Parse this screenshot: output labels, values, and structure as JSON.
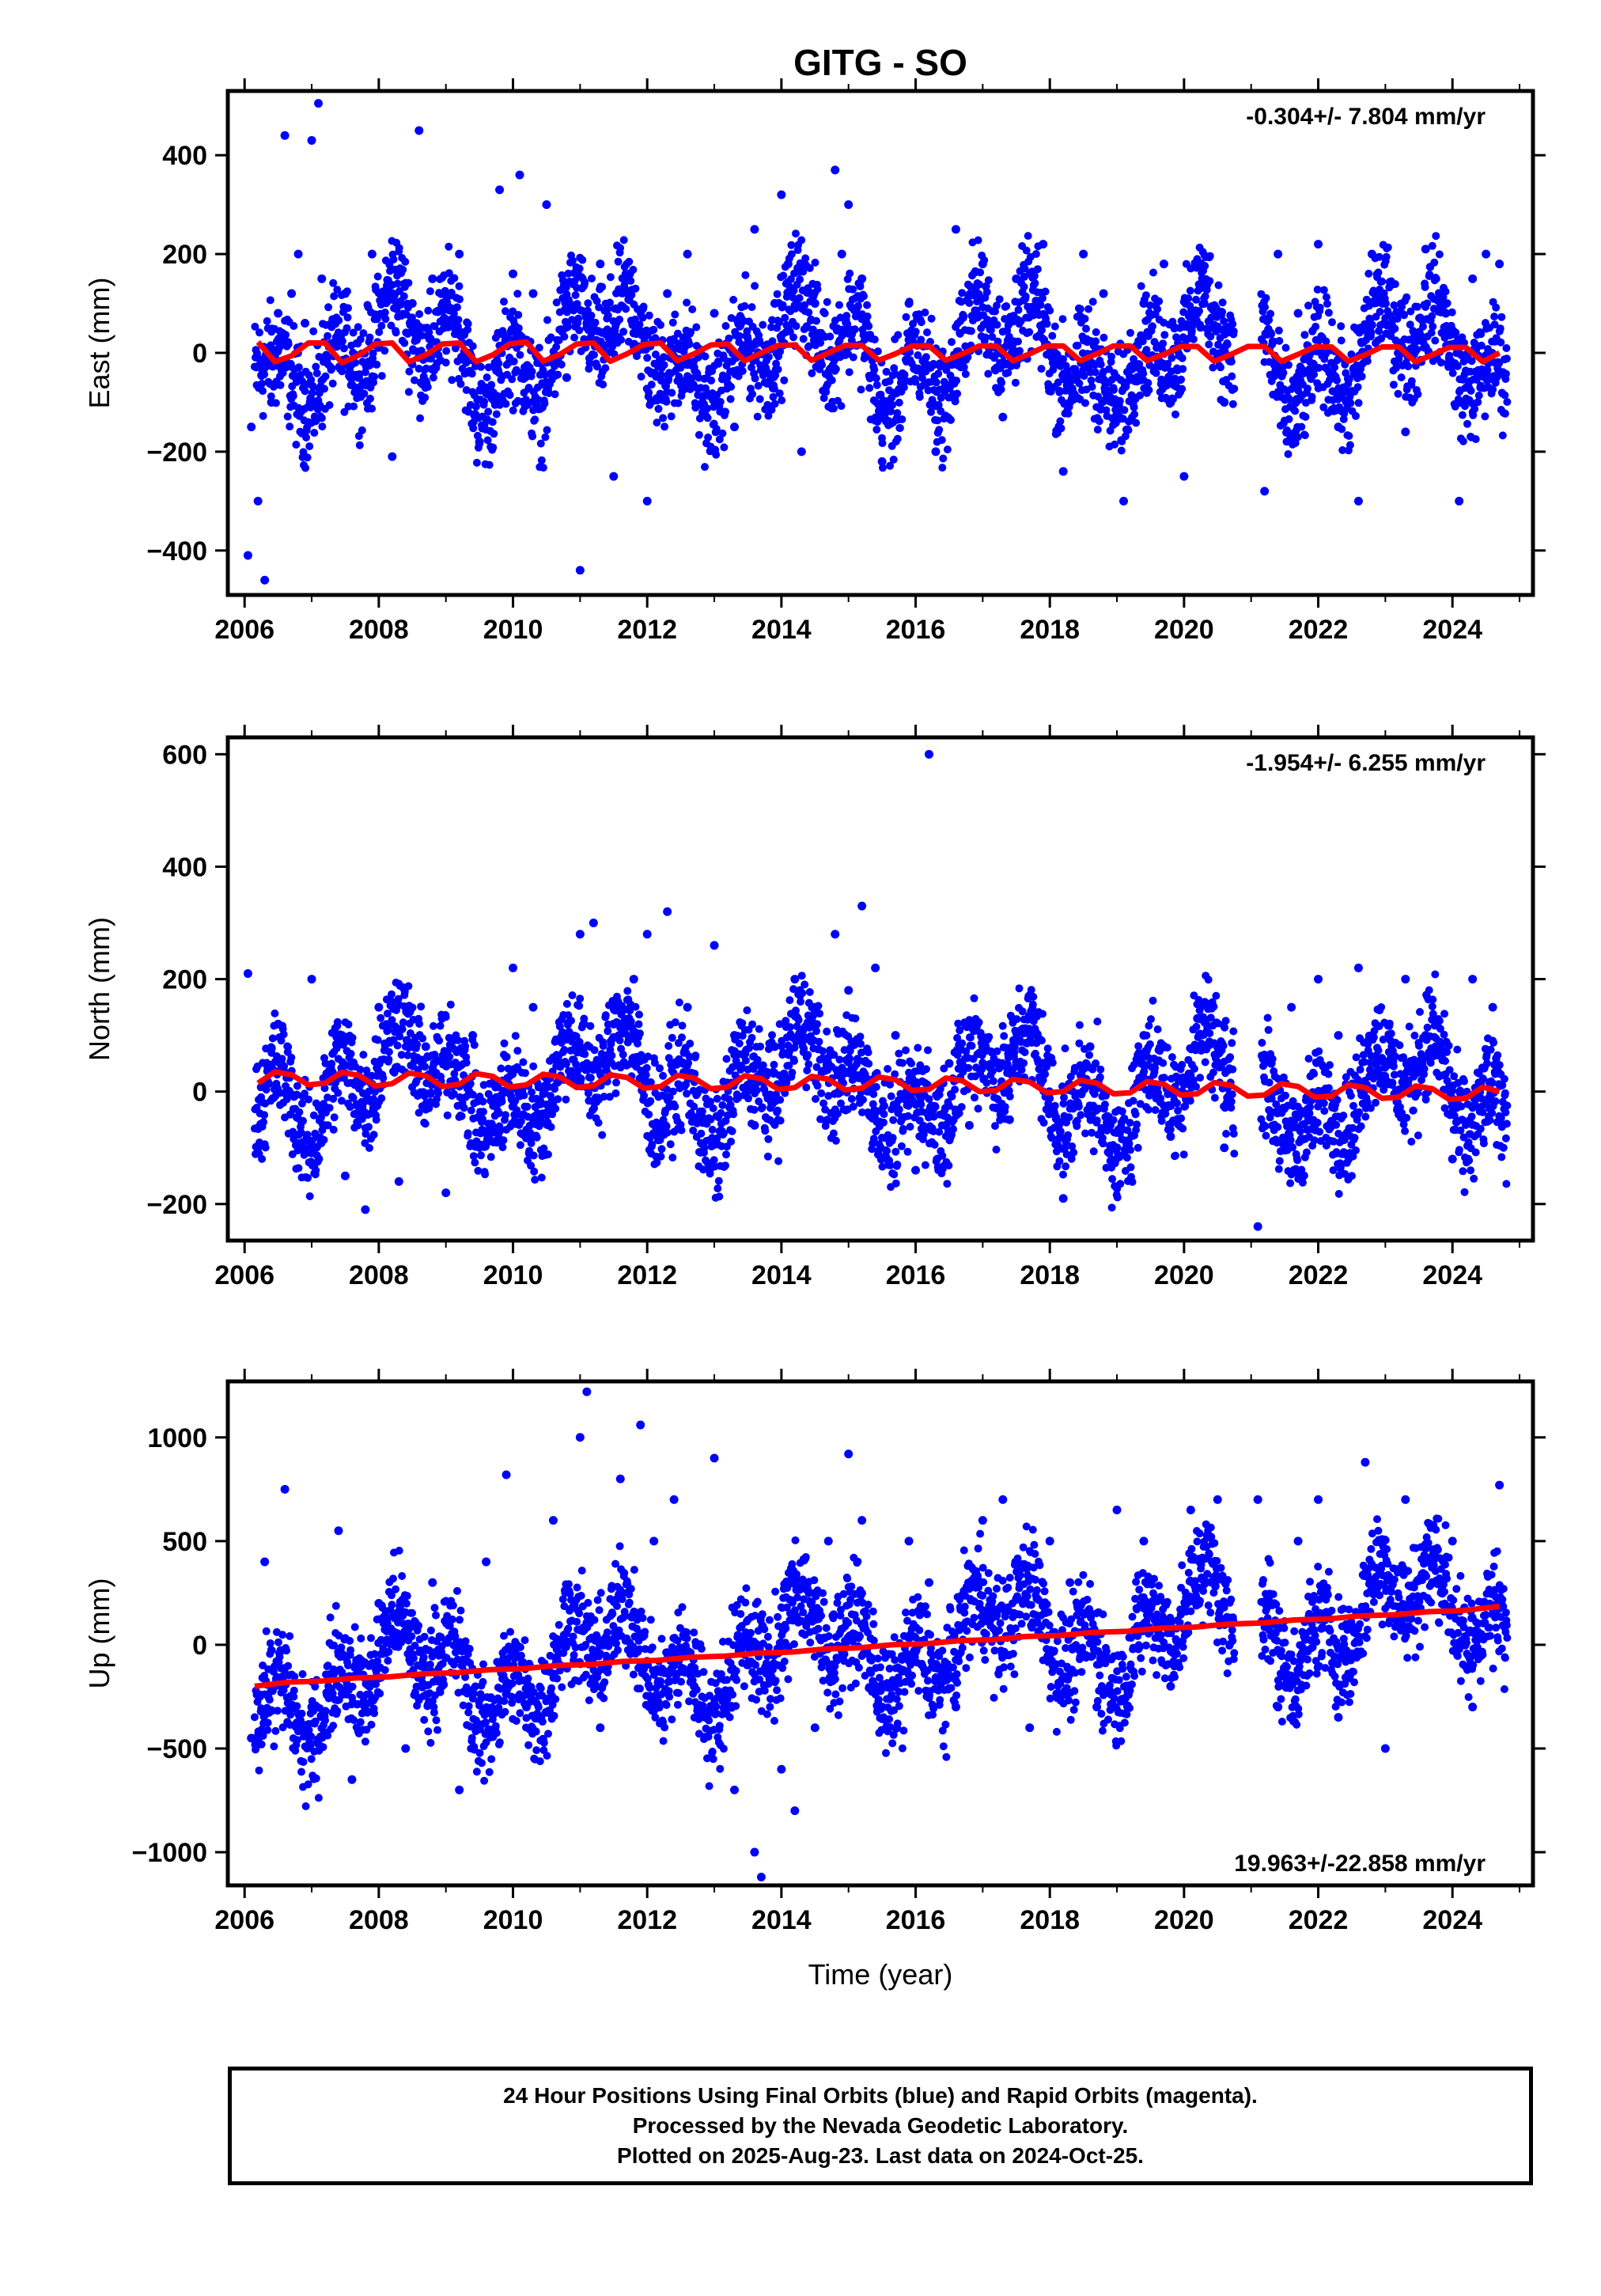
{
  "page_title": "GITG - SO",
  "colors": {
    "points": "#0000ff",
    "trend": "#ff0000",
    "axes": "#000000"
  },
  "chart_data": [
    {
      "type": "scatter",
      "title": "GITG - SO",
      "ylabel": "East (mm)",
      "xlabel": "",
      "xlim": [
        2005.75,
        2025.2
      ],
      "ylim": [
        -490,
        530
      ],
      "x_ticks": [
        "2006",
        "2008",
        "2010",
        "2012",
        "2014",
        "2016",
        "2018",
        "2020",
        "2022",
        "2024"
      ],
      "y_ticks": [
        "400",
        "200",
        "0",
        "−200",
        "−400"
      ],
      "y_tick_values": [
        400,
        200,
        0,
        -200,
        -400
      ],
      "annotation": "-0.304+/- 7.804 mm/yr",
      "annotation_position": "top-right",
      "series": [
        {
          "kind": "points",
          "color": "#0000ff",
          "x": [
            2006.05,
            2006.1,
            2006.2,
            2006.3,
            2006.4,
            2006.5,
            2006.6,
            2006.7,
            2006.8,
            2006.9,
            2007.0,
            2007.1,
            2007.15,
            2007.3,
            2007.5,
            2007.7,
            2007.9,
            2008.2,
            2008.5,
            2008.6,
            2008.8,
            2009.0,
            2009.2,
            2009.5,
            2009.8,
            2010.0,
            2010.1,
            2010.3,
            2010.5,
            2010.8,
            2011.0,
            2011.1,
            2011.3,
            2011.5,
            2011.8,
            2012.0,
            2012.3,
            2012.6,
            2013.0,
            2013.3,
            2013.6,
            2013.9,
            2014.0,
            2014.1,
            2014.3,
            2014.5,
            2014.8,
            2014.9,
            2015.0,
            2015.2,
            2015.5,
            2015.9,
            2016.3,
            2016.6,
            2017.0,
            2017.3,
            2017.5,
            2017.9,
            2018.2,
            2018.5,
            2018.8,
            2019.1,
            2019.4,
            2019.7,
            2020.0,
            2020.3,
            2020.6,
            2021.2,
            2021.4,
            2021.7,
            2022.0,
            2022.3,
            2022.6,
            2022.8,
            2023.0,
            2023.3,
            2023.6,
            2023.9,
            2024.1,
            2024.3,
            2024.5,
            2024.7
          ],
          "y": [
            -410,
            -150,
            -300,
            -460,
            -100,
            80,
            440,
            120,
            200,
            60,
            430,
            505,
            150,
            60,
            120,
            -50,
            200,
            -210,
            100,
            450,
            150,
            60,
            200,
            -180,
            330,
            160,
            360,
            120,
            300,
            -50,
            -440,
            60,
            180,
            -250,
            40,
            -300,
            120,
            200,
            80,
            -150,
            250,
            100,
            320,
            180,
            -200,
            100,
            370,
            200,
            300,
            150,
            -220,
            100,
            -200,
            250,
            180,
            -130,
            150,
            220,
            -240,
            200,
            120,
            -300,
            100,
            180,
            -250,
            100,
            -100,
            -280,
            200,
            80,
            220,
            -150,
            -300,
            200,
            100,
            -160,
            210,
            80,
            -300,
            150,
            200,
            180
          ]
        },
        {
          "kind": "trend",
          "color": "#ff0000",
          "x": [
            2006.2,
            2006.45,
            2006.7,
            2006.95,
            2007.2,
            2007.45,
            2007.7,
            2007.95,
            2008.2,
            2008.45,
            2008.7,
            2008.95,
            2009.2,
            2009.45,
            2009.7,
            2009.95,
            2010.2,
            2010.45,
            2010.7,
            2010.95,
            2011.2,
            2011.45,
            2011.7,
            2011.95,
            2012.2,
            2012.45,
            2012.7,
            2012.95,
            2013.2,
            2013.45,
            2013.7,
            2013.95,
            2014.2,
            2014.45,
            2014.7,
            2014.95,
            2015.2,
            2015.45,
            2015.7,
            2015.95,
            2016.2,
            2016.45,
            2016.7,
            2016.95,
            2017.2,
            2017.45,
            2017.7,
            2017.95,
            2018.2,
            2018.45,
            2018.7,
            2018.95,
            2019.2,
            2019.45,
            2019.7,
            2019.95,
            2020.2,
            2020.45,
            2020.7,
            2020.95,
            2021.2,
            2021.45,
            2021.7,
            2021.95,
            2022.2,
            2022.45,
            2022.7,
            2022.95,
            2023.2,
            2023.45,
            2023.7,
            2023.95,
            2024.2,
            2024.45,
            2024.7
          ],
          "y": [
            22,
            -18,
            -6,
            20,
            20,
            -20,
            -5,
            18,
            20,
            -18,
            -4,
            18,
            20,
            -18,
            -4,
            18,
            22,
            -17,
            -3,
            18,
            20,
            -17,
            -2,
            17,
            20,
            -16,
            -2,
            16,
            18,
            -16,
            0,
            15,
            16,
            -15,
            0,
            15,
            15,
            -15,
            -2,
            14,
            14,
            -15,
            -2,
            14,
            14,
            -16,
            -2,
            14,
            14,
            -16,
            -2,
            14,
            14,
            -16,
            -3,
            13,
            13,
            -17,
            -3,
            13,
            13,
            -17,
            -3,
            12,
            12,
            -17,
            -4,
            12,
            12,
            -18,
            -4,
            11,
            11,
            -18,
            0
          ]
        }
      ]
    },
    {
      "type": "scatter",
      "title": "",
      "ylabel": "North (mm)",
      "xlabel": "",
      "xlim": [
        2005.75,
        2025.2
      ],
      "ylim": [
        -265,
        630
      ],
      "x_ticks": [
        "2006",
        "2008",
        "2010",
        "2012",
        "2014",
        "2016",
        "2018",
        "2020",
        "2022",
        "2024"
      ],
      "y_ticks": [
        "600",
        "400",
        "200",
        "0",
        "−200"
      ],
      "y_tick_values": [
        600,
        400,
        200,
        0,
        -200
      ],
      "annotation": "-1.954+/- 6.255 mm/yr",
      "annotation_position": "top-right",
      "series": [
        {
          "kind": "points",
          "color": "#0000ff",
          "x": [
            2006.05,
            2006.2,
            2006.5,
            2007.0,
            2007.5,
            2007.8,
            2008.0,
            2008.3,
            2008.7,
            2009.0,
            2009.4,
            2009.8,
            2010.0,
            2010.3,
            2010.6,
            2011.0,
            2011.2,
            2011.5,
            2011.8,
            2012.0,
            2012.3,
            2012.6,
            2013.0,
            2013.3,
            2013.6,
            2013.9,
            2014.2,
            2014.5,
            2014.8,
            2015.0,
            2015.2,
            2015.4,
            2015.7,
            2016.0,
            2016.2,
            2016.5,
            2016.8,
            2017.0,
            2017.4,
            2017.8,
            2018.2,
            2018.6,
            2019.0,
            2019.4,
            2019.8,
            2020.2,
            2020.6,
            2021.1,
            2021.3,
            2021.6,
            2022.0,
            2022.3,
            2022.6,
            2023.0,
            2023.3,
            2023.6,
            2024.0,
            2024.3,
            2024.6
          ],
          "y": [
            210,
            -100,
            120,
            200,
            -150,
            -210,
            150,
            -160,
            80,
            -180,
            100,
            -70,
            220,
            150,
            60,
            280,
            300,
            120,
            200,
            280,
            320,
            150,
            260,
            100,
            -60,
            80,
            200,
            150,
            280,
            180,
            330,
            220,
            100,
            -140,
            600,
            50,
            -60,
            80,
            -50,
            100,
            -190,
            80,
            -100,
            100,
            -80,
            130,
            -100,
            -240,
            50,
            150,
            200,
            100,
            220,
            50,
            200,
            100,
            -120,
            200,
            150
          ]
        },
        {
          "kind": "trend",
          "color": "#ff0000",
          "x": [
            2006.2,
            2006.45,
            2006.7,
            2006.95,
            2007.2,
            2007.45,
            2007.7,
            2007.95,
            2008.2,
            2008.45,
            2008.7,
            2008.95,
            2009.2,
            2009.45,
            2009.7,
            2009.95,
            2010.2,
            2010.45,
            2010.7,
            2010.95,
            2011.2,
            2011.45,
            2011.7,
            2011.95,
            2012.2,
            2012.45,
            2012.7,
            2012.95,
            2013.2,
            2013.45,
            2013.7,
            2013.95,
            2014.2,
            2014.45,
            2014.7,
            2014.95,
            2015.2,
            2015.45,
            2015.7,
            2015.95,
            2016.2,
            2016.45,
            2016.7,
            2016.95,
            2017.2,
            2017.45,
            2017.7,
            2017.95,
            2018.2,
            2018.45,
            2018.7,
            2018.95,
            2019.2,
            2019.45,
            2019.7,
            2019.95,
            2020.2,
            2020.45,
            2020.7,
            2020.95,
            2021.2,
            2021.45,
            2021.7,
            2021.95,
            2022.2,
            2022.45,
            2022.7,
            2022.95,
            2023.2,
            2023.45,
            2023.7,
            2023.95,
            2024.2,
            2024.45,
            2024.7
          ],
          "y": [
            15,
            35,
            30,
            12,
            15,
            34,
            29,
            10,
            14,
            33,
            28,
            9,
            13,
            32,
            27,
            8,
            12,
            31,
            26,
            7,
            10,
            30,
            25,
            6,
            9,
            29,
            24,
            5,
            8,
            28,
            23,
            4,
            7,
            27,
            22,
            3,
            6,
            26,
            21,
            2,
            4,
            24,
            19,
            0,
            2,
            22,
            17,
            -2,
            0,
            20,
            15,
            -4,
            -2,
            18,
            13,
            -6,
            -4,
            16,
            11,
            -8,
            -6,
            14,
            9,
            -10,
            -8,
            12,
            7,
            -12,
            -10,
            10,
            5,
            -14,
            -12,
            8,
            0
          ]
        }
      ]
    },
    {
      "type": "scatter",
      "title": "",
      "ylabel": "Up (mm)",
      "xlabel": "Time (year)",
      "xlim": [
        2005.75,
        2025.2
      ],
      "ylim": [
        -1160,
        1270
      ],
      "x_ticks": [
        "2006",
        "2008",
        "2010",
        "2012",
        "2014",
        "2016",
        "2018",
        "2020",
        "2022",
        "2024"
      ],
      "y_ticks": [
        "1000",
        "500",
        "0",
        "−500",
        "−1000"
      ],
      "y_tick_values": [
        1000,
        500,
        0,
        -500,
        -1000
      ],
      "annotation": "19.963+/-22.858 mm/yr",
      "annotation_position": "bottom-right",
      "series": [
        {
          "kind": "points",
          "color": "#0000ff",
          "x": [
            2006.1,
            2006.3,
            2006.6,
            2007.0,
            2007.4,
            2007.6,
            2008.0,
            2008.4,
            2008.8,
            2009.2,
            2009.6,
            2009.9,
            2010.2,
            2010.6,
            2011.0,
            2011.1,
            2011.3,
            2011.6,
            2011.9,
            2012.1,
            2012.4,
            2012.7,
            2013.0,
            2013.3,
            2013.6,
            2013.7,
            2014.0,
            2014.2,
            2014.5,
            2014.7,
            2015.0,
            2015.2,
            2015.5,
            2015.9,
            2016.2,
            2016.6,
            2017.0,
            2017.3,
            2017.7,
            2018.0,
            2018.3,
            2018.7,
            2019.0,
            2019.4,
            2019.8,
            2020.1,
            2020.5,
            2021.1,
            2021.4,
            2021.7,
            2022.0,
            2022.3,
            2022.7,
            2023.0,
            2023.3,
            2023.7,
            2024.0,
            2024.3,
            2024.7
          ],
          "y": [
            -450,
            400,
            750,
            -300,
            550,
            -650,
            200,
            -500,
            300,
            -700,
            400,
            820,
            -300,
            600,
            1000,
            1220,
            -400,
            800,
            1060,
            500,
            700,
            -200,
            900,
            -700,
            -1000,
            -1120,
            -600,
            -800,
            -400,
            500,
            920,
            600,
            -200,
            500,
            300,
            -300,
            600,
            700,
            -400,
            500,
            300,
            -300,
            650,
            500,
            -200,
            650,
            700,
            700,
            -300,
            500,
            700,
            -350,
            880,
            -500,
            700,
            300,
            500,
            -300,
            770
          ]
        },
        {
          "kind": "trend",
          "color": "#ff0000",
          "x": [
            2006.15,
            2006.65,
            2007.15,
            2007.65,
            2008.15,
            2008.65,
            2009.15,
            2009.65,
            2010.15,
            2010.65,
            2011.15,
            2011.65,
            2012.15,
            2012.65,
            2013.15,
            2013.65,
            2014.15,
            2014.65,
            2015.15,
            2015.65,
            2016.15,
            2016.65,
            2017.15,
            2017.65,
            2018.15,
            2018.65,
            2019.15,
            2019.65,
            2020.15,
            2020.65,
            2021.15,
            2021.65,
            2022.15,
            2022.65,
            2023.15,
            2023.65,
            2024.15,
            2024.7
          ],
          "y": [
            -200,
            -180,
            -175,
            -160,
            -155,
            -140,
            -135,
            -120,
            -115,
            -100,
            -95,
            -80,
            -75,
            -60,
            -55,
            -40,
            -35,
            -20,
            -15,
            0,
            5,
            20,
            25,
            40,
            45,
            60,
            65,
            80,
            85,
            100,
            105,
            120,
            125,
            140,
            145,
            160,
            165,
            185
          ]
        }
      ]
    }
  ],
  "footer": {
    "line1": "24 Hour Positions Using Final Orbits (blue) and Rapid Orbits (magenta).",
    "line2": "Processed by the Nevada Geodetic Laboratory.",
    "line3": "Plotted on 2025-Aug-23. Last data on 2024-Oct-25."
  }
}
